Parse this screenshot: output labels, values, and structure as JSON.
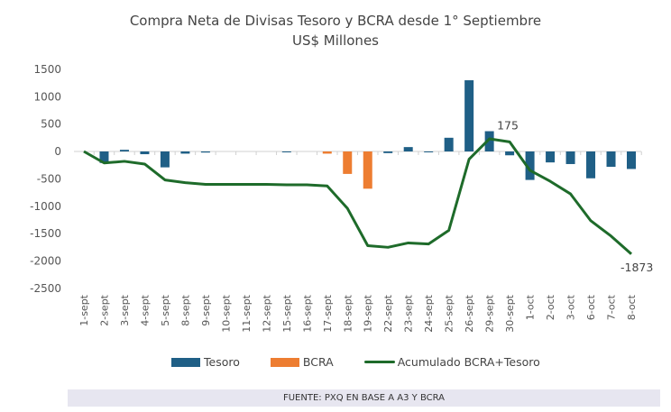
{
  "chart_data": {
    "type": "bar+line",
    "title": "Compra Neta de Divisas Tesoro y BCRA desde 1° Septiembre",
    "subtitle": "US$ Millones",
    "categories": [
      "1-sept",
      "2-sept",
      "3-sept",
      "4-sept",
      "5-sept",
      "8-sept",
      "9-sept",
      "10-sept",
      "11-sept",
      "12-sept",
      "15-sept",
      "16-sept",
      "17-sept",
      "18-sept",
      "19-sept",
      "22-sept",
      "23-sept",
      "24-sept",
      "25-sept",
      "26-sept",
      "29-sept",
      "30-sept",
      "1-oct",
      "2-oct",
      "3-oct",
      "6-oct",
      "7-oct",
      "8-oct"
    ],
    "series": [
      {
        "name": "Tesoro",
        "type": "bar",
        "color": "#1f5f86",
        "values": [
          0,
          -210,
          30,
          -50,
          -290,
          -40,
          -20,
          0,
          0,
          0,
          -5,
          0,
          0,
          0,
          0,
          -30,
          80,
          -10,
          250,
          1300,
          370,
          -70,
          -520,
          -200,
          -230,
          -490,
          -280,
          -320
        ]
      },
      {
        "name": "BCRA",
        "type": "bar",
        "color": "#ed7d31",
        "values": [
          0,
          0,
          0,
          0,
          0,
          0,
          0,
          0,
          0,
          0,
          0,
          0,
          -40,
          -410,
          -680,
          0,
          0,
          0,
          0,
          0,
          0,
          0,
          0,
          0,
          0,
          0,
          0,
          0
        ]
      },
      {
        "name": "Acumulado BCRA+Tesoro",
        "type": "line",
        "color": "#1e6b2a",
        "values": [
          0,
          -210,
          -180,
          -230,
          -520,
          -570,
          -600,
          -600,
          -600,
          -600,
          -610,
          -610,
          -630,
          -1040,
          -1720,
          -1750,
          -1670,
          -1690,
          -1440,
          -140,
          230,
          175,
          -345,
          -545,
          -775,
          -1265,
          -1545,
          -1873
        ]
      }
    ],
    "annotations": [
      {
        "category": "30-sept",
        "text": "175"
      },
      {
        "category": "8-oct",
        "text": "-1873"
      }
    ],
    "yticks": [
      1500,
      1000,
      500,
      0,
      -500,
      -1000,
      -1500,
      -2000,
      -2500
    ],
    "ylim": [
      -2500,
      1500
    ],
    "grid": false,
    "legend": "bottom"
  },
  "footer": "FUENTE: PXQ EN BASE A A3 Y BCRA"
}
